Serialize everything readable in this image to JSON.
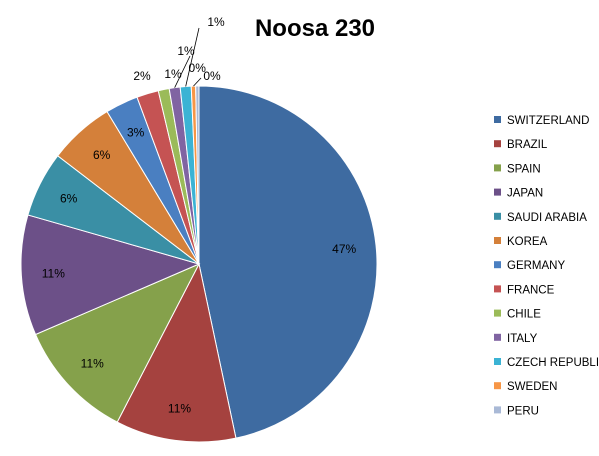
{
  "chart_data": {
    "type": "pie",
    "title": "Noosa 230",
    "legend_position": "right",
    "start_angle_deg": 0,
    "direction": "clockwise",
    "slices": [
      {
        "name": "SWITZERLAND",
        "value": 47,
        "label": "47%",
        "color": "#3e6ba1"
      },
      {
        "name": "BRAZIL",
        "value": 11,
        "label": "11%",
        "color": "#a5423f"
      },
      {
        "name": "SPAIN",
        "value": 11,
        "label": "11%",
        "color": "#85a14b"
      },
      {
        "name": "JAPAN",
        "value": 11,
        "label": "11%",
        "color": "#6c5088"
      },
      {
        "name": "SAUDI ARABIA",
        "value": 6,
        "label": "6%",
        "color": "#3a8fa5"
      },
      {
        "name": "KOREA",
        "value": 6,
        "label": "6%",
        "color": "#d4803a"
      },
      {
        "name": "GERMANY",
        "value": 3,
        "label": "3%",
        "color": "#4a7fc1"
      },
      {
        "name": "FRANCE",
        "value": 2,
        "label": "2%",
        "color": "#c55353"
      },
      {
        "name": "CHILE",
        "value": 1,
        "label": "1%",
        "color": "#9bbb59"
      },
      {
        "name": "ITALY",
        "value": 1,
        "label": "1%",
        "color": "#8064a2"
      },
      {
        "name": "CZECH REPUBLIC",
        "value": 1,
        "label": "1%",
        "color": "#3bb3d4"
      },
      {
        "name": "SWEDEN",
        "value": 0.4,
        "label": "0%",
        "color": "#f79646"
      },
      {
        "name": "PERU",
        "value": 0.3,
        "label": "0%",
        "color": "#a9b9d6"
      }
    ]
  }
}
